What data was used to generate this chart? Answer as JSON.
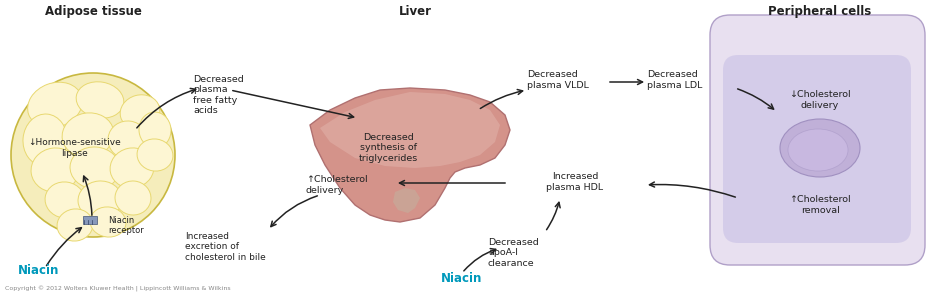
{
  "title_adipose": "Adipose tissue",
  "title_liver": "Liver",
  "title_peripheral": "Peripheral cells",
  "copyright": "Copyright © 2012 Wolters Kluwer Health | Lippincott Williams & Wilkins",
  "bg_color": "#ffffff",
  "adipose_fill": "#f5edbb",
  "adipose_border": "#c8b840",
  "adipose_bubble_fill": "#fdf6d3",
  "adipose_bubble_edge": "#e8d870",
  "liver_fill": "#d4938a",
  "liver_highlight": "#e0b0a8",
  "liver_shadow": "#c07878",
  "cell_outer_fill": "#e8e0f0",
  "cell_outer_edge": "#b0a0c8",
  "cell_inner_fill": "#d0c8e8",
  "cell_purple_fill": "#c8b8e0",
  "cell_nucleus_fill": "#c0b0d8",
  "cell_nucleus_edge": "#a090c0",
  "niacin_color": "#0099bb",
  "arrow_color": "#222222",
  "text_color": "#222222",
  "title_fontsize": 8.5,
  "label_fontsize": 7.0,
  "niacin_fontsize": 8.5,
  "copyright_fontsize": 4.5,
  "annotations": {
    "decreased_plasma_ffa": "Decreased\nplasma\nfree fatty\nacids",
    "hormone_sensitive": "↓Hormone-sensitive\nlipase",
    "niacin_receptor": "Niacin\nreceptor",
    "niacin_left": "Niacin",
    "decreased_synthesis": "Decreased\nsynthesis of\ntriglycerides",
    "cholesterol_delivery_liver": "↑Cholesterol\ndelivery",
    "increased_excretion": "Increased\nexcretion of\ncholesterol in bile",
    "decreased_vldl": "Decreased\nplasma VLDL",
    "decreased_ldl": "Decreased\nplasma LDL",
    "cholesterol_delivery_cell": "↓Cholesterol\ndelivery",
    "cholesterol_removal": "↑Cholesterol\nremoval",
    "increased_hdl": "Increased\nplasma HDL",
    "decreased_apoa": "Decreased\napoA-I\nclearance",
    "niacin_center": "Niacin"
  }
}
